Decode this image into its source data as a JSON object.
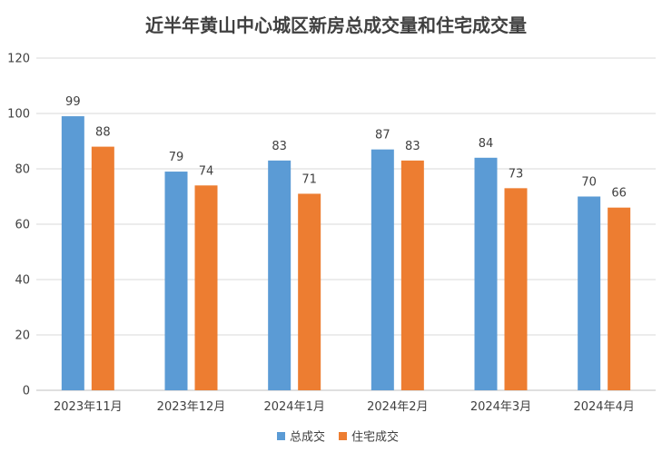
{
  "chart_data": {
    "type": "bar",
    "title": "近半年黄山中心城区新房总成交量和住宅成交量",
    "xlabel": "",
    "ylabel": "",
    "categories": [
      "2023年11月",
      "2023年12月",
      "2024年1月",
      "2024年2月",
      "2024年3月",
      "2024年4月"
    ],
    "series": [
      {
        "name": "总成交",
        "values": [
          99,
          79,
          83,
          87,
          84,
          70
        ],
        "color": "#5b9bd5"
      },
      {
        "name": "住宅成交",
        "values": [
          88,
          74,
          71,
          83,
          73,
          66
        ],
        "color": "#ed7d31"
      }
    ],
    "ylim": [
      0,
      120
    ],
    "yticks": [
      0,
      20,
      40,
      60,
      80,
      100,
      120
    ],
    "grid": true,
    "legend": "bottom-center",
    "data_labels": true
  }
}
